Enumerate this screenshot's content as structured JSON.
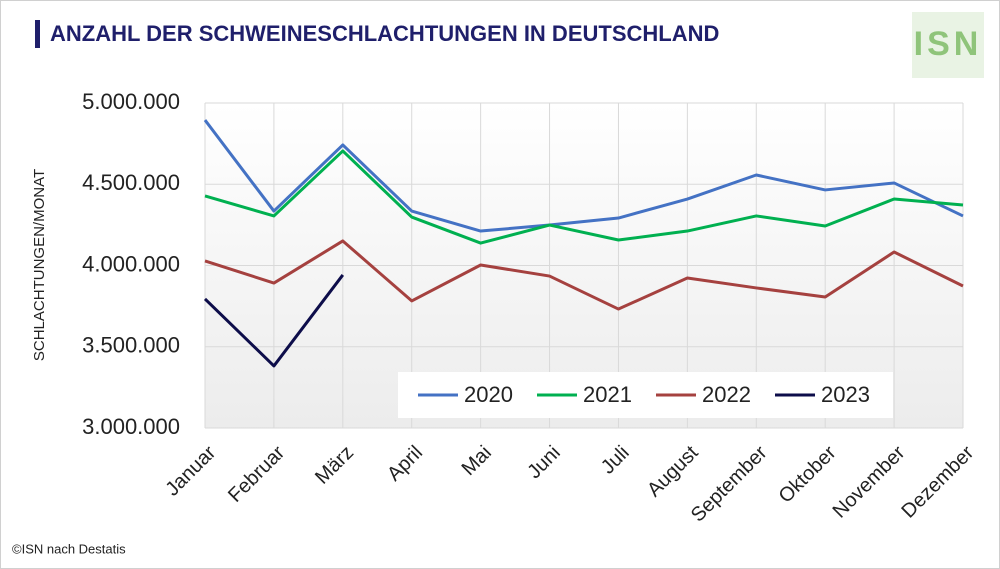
{
  "chart_data": {
    "type": "line",
    "title": "ANZAHL DER SCHWEINESCHLACHTUNGEN IN DEUTSCHLAND",
    "y_label": "SCHLACHTUNGEN/MONAT",
    "source": "©ISN nach Destatis",
    "logo": "ISN",
    "categories": [
      "Januar",
      "Februar",
      "März",
      "April",
      "Mai",
      "Juni",
      "Juli",
      "August",
      "September",
      "Oktober",
      "November",
      "Dezember"
    ],
    "series": [
      {
        "name": "2020",
        "color": "#4472c4",
        "values": [
          4895000,
          4335000,
          4742000,
          4335000,
          4212000,
          4249000,
          4292000,
          4409000,
          4557000,
          4465000,
          4508000,
          4305000
        ]
      },
      {
        "name": "2021",
        "color": "#00b050",
        "values": [
          4428000,
          4305000,
          4705000,
          4298000,
          4138000,
          4249000,
          4157000,
          4212000,
          4305000,
          4243000,
          4409000,
          4372000
        ]
      },
      {
        "name": "2022",
        "color": "#a5413f",
        "values": [
          4028000,
          3892000,
          4151000,
          3782000,
          4003000,
          3935000,
          3732000,
          3923000,
          3862000,
          3806000,
          4083000,
          3874000
        ]
      },
      {
        "name": "2023",
        "color": "#0d0d4a",
        "values": [
          3794000,
          3382000,
          3942000,
          null,
          null,
          null,
          null,
          null,
          null,
          null,
          null,
          null
        ]
      }
    ],
    "ylim": [
      3000000,
      5000000
    ],
    "yticks": [
      {
        "value": 3000000,
        "label": "3.000.000"
      },
      {
        "value": 3500000,
        "label": "3.500.000"
      },
      {
        "value": 4000000,
        "label": "4.000.000"
      },
      {
        "value": 4500000,
        "label": "4.500.000"
      },
      {
        "value": 5000000,
        "label": "5.000.000"
      }
    ],
    "grid": true,
    "legend": "bottom"
  }
}
